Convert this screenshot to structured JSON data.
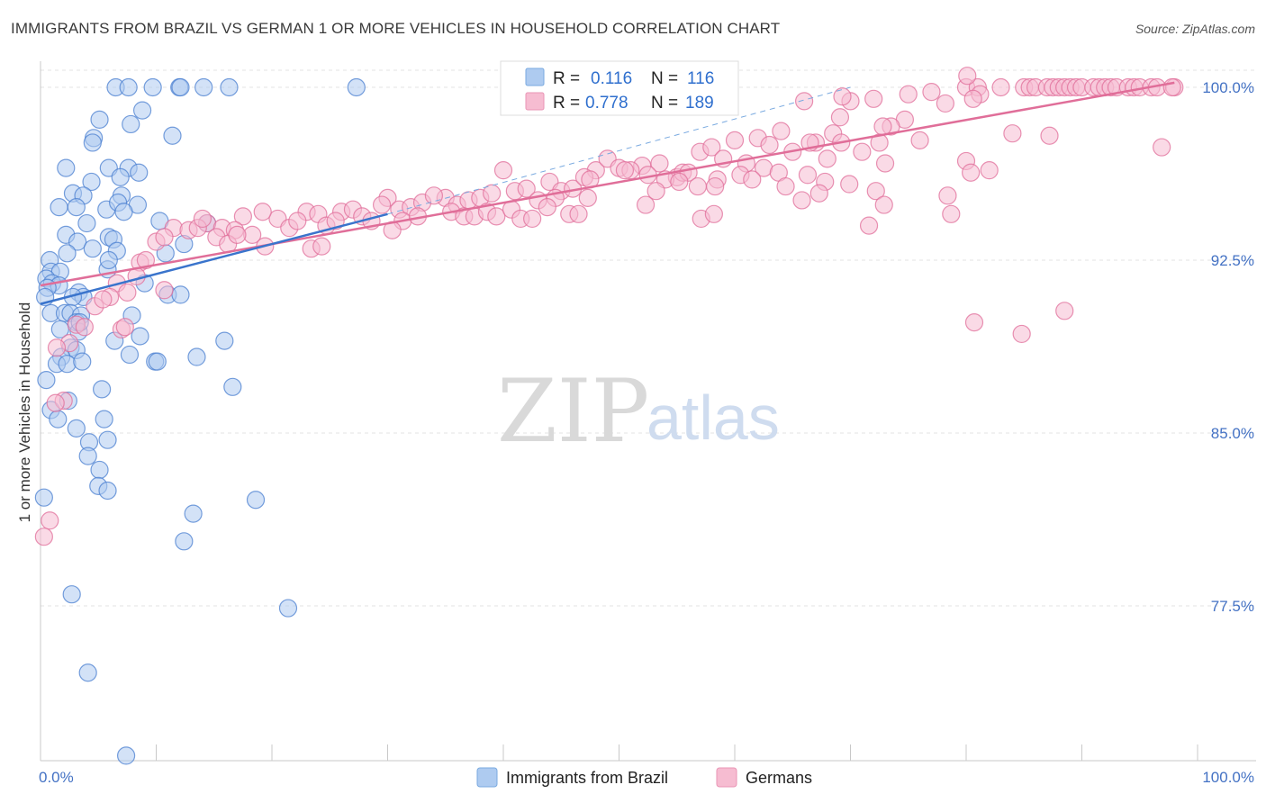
{
  "title": "IMMIGRANTS FROM BRAZIL VS GERMAN 1 OR MORE VEHICLES IN HOUSEHOLD CORRELATION CHART",
  "source": "Source: ZipAtlas.com",
  "watermark": {
    "zip": "ZIP",
    "atlas": "atlas"
  },
  "legend": {
    "r_label": "R =",
    "n_label": "N =",
    "rows": [
      {
        "r": "0.116",
        "n": "116",
        "color": "#7aaae0",
        "fill": "#aecbf0"
      },
      {
        "r": "0.778",
        "n": "189",
        "color": "#e995b5",
        "fill": "#f6bcd1"
      }
    ]
  },
  "chart_data": {
    "type": "scatter",
    "title": "IMMIGRANTS FROM BRAZIL VS GERMAN 1 OR MORE VEHICLES IN HOUSEHOLD CORRELATION CHART",
    "xlabel": "",
    "ylabel": "1 or more Vehicles in Household",
    "xlim": [
      0,
      100
    ],
    "ylim": [
      70.5,
      100.7
    ],
    "x_tick_labels": [
      "0.0%",
      "100.0%"
    ],
    "y_ticks": [
      100.0,
      92.5,
      85.0,
      77.5
    ],
    "y_tick_labels": [
      "100.0%",
      "92.5%",
      "85.0%",
      "77.5%"
    ],
    "grid": true,
    "legend_position": "top-center",
    "series": [
      {
        "name": "Immigrants from Brazil",
        "color": "#4a7fd0",
        "fill": "#aecbf0",
        "r": 0.116,
        "n": 116,
        "trend": {
          "x": [
            0,
            30
          ],
          "y": [
            90.6,
            94.5
          ]
        },
        "trend_extension": {
          "x": [
            30,
            70
          ],
          "y": [
            94.5,
            100.0
          ]
        },
        "points": [
          [
            6.5,
            100
          ],
          [
            7.6,
            100
          ],
          [
            9.7,
            100
          ],
          [
            12.0,
            100
          ],
          [
            12.1,
            100
          ],
          [
            14.1,
            100
          ],
          [
            16.3,
            100
          ],
          [
            27.3,
            100
          ],
          [
            8.8,
            99.0
          ],
          [
            5.1,
            98.6
          ],
          [
            7.8,
            98.4
          ],
          [
            11.4,
            97.9
          ],
          [
            4.6,
            97.8
          ],
          [
            4.5,
            97.6
          ],
          [
            2.2,
            96.5
          ],
          [
            5.9,
            96.5
          ],
          [
            7.6,
            96.5
          ],
          [
            8.5,
            96.3
          ],
          [
            6.9,
            96.1
          ],
          [
            4.4,
            95.9
          ],
          [
            2.8,
            95.4
          ],
          [
            3.7,
            95.3
          ],
          [
            7.0,
            95.3
          ],
          [
            1.6,
            94.8
          ],
          [
            3.1,
            94.8
          ],
          [
            5.7,
            94.7
          ],
          [
            6.7,
            95.0
          ],
          [
            8.4,
            94.9
          ],
          [
            4.0,
            94.1
          ],
          [
            7.2,
            94.6
          ],
          [
            10.3,
            94.2
          ],
          [
            14.4,
            94.1
          ],
          [
            2.2,
            93.6
          ],
          [
            3.2,
            93.3
          ],
          [
            5.9,
            93.5
          ],
          [
            6.3,
            93.4
          ],
          [
            4.5,
            93.0
          ],
          [
            6.6,
            92.9
          ],
          [
            2.3,
            92.8
          ],
          [
            12.4,
            93.2
          ],
          [
            10.8,
            92.8
          ],
          [
            0.8,
            92.5
          ],
          [
            0.9,
            92.0
          ],
          [
            1.7,
            92.0
          ],
          [
            5.8,
            92.1
          ],
          [
            5.9,
            92.5
          ],
          [
            0.5,
            91.7
          ],
          [
            1.0,
            91.5
          ],
          [
            1.6,
            91.4
          ],
          [
            0.6,
            91.3
          ],
          [
            0.4,
            90.9
          ],
          [
            3.3,
            91.1
          ],
          [
            3.7,
            90.9
          ],
          [
            2.8,
            90.9
          ],
          [
            9.0,
            91.5
          ],
          [
            11.0,
            91.0
          ],
          [
            12.1,
            91.0
          ],
          [
            0.9,
            90.2
          ],
          [
            2.1,
            90.2
          ],
          [
            2.6,
            90.2
          ],
          [
            3.5,
            90.1
          ],
          [
            7.9,
            90.1
          ],
          [
            3.1,
            89.8
          ],
          [
            1.7,
            89.5
          ],
          [
            3.3,
            89.4
          ],
          [
            3.4,
            89.8
          ],
          [
            8.6,
            89.2
          ],
          [
            6.4,
            89.0
          ],
          [
            15.9,
            89.0
          ],
          [
            2.6,
            88.7
          ],
          [
            3.1,
            88.6
          ],
          [
            1.8,
            88.3
          ],
          [
            7.7,
            88.4
          ],
          [
            9.9,
            88.1
          ],
          [
            1.4,
            88.0
          ],
          [
            2.3,
            88.0
          ],
          [
            3.6,
            88.1
          ],
          [
            10.1,
            88.1
          ],
          [
            13.5,
            88.3
          ],
          [
            0.5,
            87.3
          ],
          [
            5.3,
            86.9
          ],
          [
            16.6,
            87.0
          ],
          [
            2.4,
            86.4
          ],
          [
            0.9,
            86.0
          ],
          [
            1.5,
            85.6
          ],
          [
            3.1,
            85.2
          ],
          [
            5.5,
            85.6
          ],
          [
            4.2,
            84.6
          ],
          [
            5.8,
            84.7
          ],
          [
            4.1,
            84.0
          ],
          [
            5.1,
            83.4
          ],
          [
            5.0,
            82.7
          ],
          [
            5.8,
            82.5
          ],
          [
            0.3,
            82.2
          ],
          [
            18.6,
            82.1
          ],
          [
            13.2,
            81.5
          ],
          [
            12.4,
            80.3
          ],
          [
            2.7,
            78.0
          ],
          [
            21.4,
            77.4
          ],
          [
            4.1,
            74.6
          ],
          [
            7.4,
            71.0
          ]
        ]
      },
      {
        "name": "Germans",
        "color": "#e06e99",
        "fill": "#f6bcd1",
        "r": 0.778,
        "n": 189,
        "trend": {
          "x": [
            0,
            98
          ],
          "y": [
            91.4,
            100.2
          ]
        },
        "points": [
          [
            80,
            100
          ],
          [
            81,
            100
          ],
          [
            83,
            100
          ],
          [
            85,
            100
          ],
          [
            85.5,
            100
          ],
          [
            86,
            100
          ],
          [
            87,
            100
          ],
          [
            87.5,
            100
          ],
          [
            88,
            100
          ],
          [
            88.5,
            100
          ],
          [
            89,
            100
          ],
          [
            89.5,
            100
          ],
          [
            90,
            100
          ],
          [
            91,
            100
          ],
          [
            91.5,
            100
          ],
          [
            92,
            100
          ],
          [
            92.5,
            100
          ],
          [
            93,
            100
          ],
          [
            94,
            100
          ],
          [
            94.5,
            100
          ],
          [
            95,
            100
          ],
          [
            96,
            100
          ],
          [
            96.5,
            100
          ],
          [
            98,
            100
          ],
          [
            97.8,
            100
          ],
          [
            81.2,
            99.7
          ],
          [
            72,
            99.5
          ],
          [
            75,
            99.7
          ],
          [
            77,
            99.8
          ],
          [
            80.1,
            100.5
          ],
          [
            70,
            99.4
          ],
          [
            69.3,
            99.6
          ],
          [
            66,
            99.4
          ],
          [
            69.1,
            98.7
          ],
          [
            78.2,
            99.3
          ],
          [
            80.6,
            99.5
          ],
          [
            74.7,
            98.6
          ],
          [
            73.5,
            98.3
          ],
          [
            72.8,
            98.3
          ],
          [
            68.5,
            98.0
          ],
          [
            69.2,
            97.6
          ],
          [
            64,
            98.1
          ],
          [
            60,
            97.7
          ],
          [
            62,
            97.8
          ],
          [
            63,
            97.5
          ],
          [
            67,
            97.6
          ],
          [
            72.5,
            97.6
          ],
          [
            76,
            97.7
          ],
          [
            84,
            98.0
          ],
          [
            57,
            97.2
          ],
          [
            58,
            97.4
          ],
          [
            59,
            96.9
          ],
          [
            61,
            96.7
          ],
          [
            65,
            97.2
          ],
          [
            66.5,
            97.6
          ],
          [
            68,
            96.9
          ],
          [
            71,
            97.2
          ],
          [
            73,
            96.7
          ],
          [
            80,
            96.8
          ],
          [
            82,
            96.4
          ],
          [
            87.2,
            97.9
          ],
          [
            96.9,
            97.4
          ],
          [
            52,
            96.6
          ],
          [
            53.5,
            96.7
          ],
          [
            55,
            96.1
          ],
          [
            55.5,
            96.3
          ],
          [
            56,
            96.3
          ],
          [
            48,
            96.4
          ],
          [
            49,
            96.9
          ],
          [
            50,
            96.5
          ],
          [
            51,
            96.4
          ],
          [
            54,
            96.0
          ],
          [
            58.5,
            96.0
          ],
          [
            60.5,
            96.2
          ],
          [
            62.5,
            96.5
          ],
          [
            63.8,
            96.3
          ],
          [
            66.3,
            96.2
          ],
          [
            67.8,
            95.9
          ],
          [
            69.9,
            95.8
          ],
          [
            72.2,
            95.5
          ],
          [
            78.4,
            95.3
          ],
          [
            80.4,
            96.3
          ],
          [
            40,
            96.4
          ],
          [
            44,
            95.9
          ],
          [
            45,
            95.5
          ],
          [
            46,
            95.6
          ],
          [
            47,
            96.1
          ],
          [
            47.5,
            96.0
          ],
          [
            50.5,
            96.4
          ],
          [
            52.5,
            96.2
          ],
          [
            55.2,
            95.9
          ],
          [
            58.3,
            95.7
          ],
          [
            61.5,
            96.0
          ],
          [
            64.4,
            95.7
          ],
          [
            65.8,
            95.1
          ],
          [
            67.3,
            95.4
          ],
          [
            72.9,
            94.9
          ],
          [
            78.7,
            94.5
          ],
          [
            35,
            95.2
          ],
          [
            36,
            94.9
          ],
          [
            37,
            95.1
          ],
          [
            38,
            95.2
          ],
          [
            39,
            95.4
          ],
          [
            41,
            95.5
          ],
          [
            42,
            95.6
          ],
          [
            43,
            95.1
          ],
          [
            44.5,
            95.2
          ],
          [
            47.3,
            95.2
          ],
          [
            52.3,
            94.9
          ],
          [
            53.2,
            95.5
          ],
          [
            56.8,
            95.7
          ],
          [
            57.1,
            94.3
          ],
          [
            58.2,
            94.5
          ],
          [
            71.6,
            94.0
          ],
          [
            30,
            95.2
          ],
          [
            31,
            94.7
          ],
          [
            32,
            94.8
          ],
          [
            33,
            95.0
          ],
          [
            34,
            95.3
          ],
          [
            35.5,
            94.6
          ],
          [
            36.6,
            94.4
          ],
          [
            37.5,
            94.4
          ],
          [
            38.6,
            94.6
          ],
          [
            39.4,
            94.4
          ],
          [
            40.7,
            94.7
          ],
          [
            41.5,
            94.3
          ],
          [
            42.5,
            94.3
          ],
          [
            43.8,
            94.8
          ],
          [
            45.7,
            94.5
          ],
          [
            46.5,
            94.5
          ],
          [
            26,
            94.6
          ],
          [
            27,
            94.7
          ],
          [
            27.8,
            94.4
          ],
          [
            28.6,
            94.2
          ],
          [
            29.5,
            94.9
          ],
          [
            31.3,
            94.2
          ],
          [
            32.6,
            94.4
          ],
          [
            23,
            94.6
          ],
          [
            24,
            94.5
          ],
          [
            24.7,
            94.0
          ],
          [
            25.5,
            94.2
          ],
          [
            20.5,
            94.3
          ],
          [
            21.5,
            93.9
          ],
          [
            22.2,
            94.2
          ],
          [
            19.2,
            94.6
          ],
          [
            17.5,
            94.4
          ],
          [
            14.4,
            94.1
          ],
          [
            15.7,
            93.9
          ],
          [
            16.8,
            93.8
          ],
          [
            18.3,
            93.6
          ],
          [
            11.5,
            93.9
          ],
          [
            12.8,
            93.8
          ],
          [
            13.6,
            93.9
          ],
          [
            14.0,
            94.3
          ],
          [
            10.0,
            93.3
          ],
          [
            10.7,
            93.5
          ],
          [
            15.2,
            93.5
          ],
          [
            16.2,
            93.2
          ],
          [
            17.0,
            93.6
          ],
          [
            19.4,
            93.1
          ],
          [
            23.4,
            93.0
          ],
          [
            24.3,
            93.1
          ],
          [
            30.4,
            93.8
          ],
          [
            8.6,
            92.4
          ],
          [
            9.1,
            92.5
          ],
          [
            6.6,
            91.5
          ],
          [
            8.3,
            91.8
          ],
          [
            6.0,
            90.9
          ],
          [
            7.5,
            91.1
          ],
          [
            10.7,
            91.2
          ],
          [
            4.7,
            90.5
          ],
          [
            5.4,
            90.8
          ],
          [
            3.1,
            89.7
          ],
          [
            3.8,
            89.6
          ],
          [
            7.0,
            89.5
          ],
          [
            7.3,
            89.6
          ],
          [
            2.5,
            88.9
          ],
          [
            1.4,
            88.7
          ],
          [
            2.0,
            86.4
          ],
          [
            1.3,
            86.3
          ],
          [
            0.8,
            81.2
          ],
          [
            0.3,
            80.5
          ],
          [
            80.7,
            89.8
          ],
          [
            84.8,
            89.3
          ],
          [
            88.5,
            90.3
          ]
        ]
      }
    ]
  },
  "bottom_legend": {
    "items": [
      {
        "label": "Immigrants from Brazil"
      },
      {
        "label": "Germans"
      }
    ]
  }
}
